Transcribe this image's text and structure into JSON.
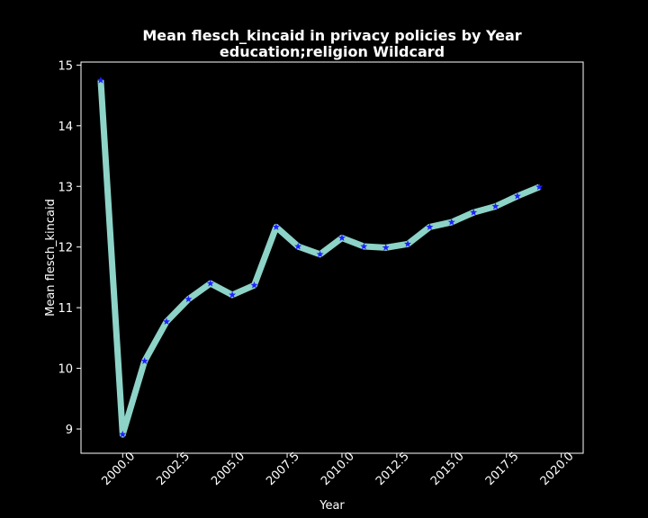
{
  "chart_data": {
    "type": "line",
    "title_line1": "Mean flesch_kincaid in privacy policies by Year",
    "title_line2": "education;religion Wildcard",
    "xlabel": "Year",
    "ylabel": "Mean flesch_kincaid",
    "xlim": [
      1998.1,
      2021.0
    ],
    "ylim": [
      8.6,
      15.05
    ],
    "x_ticks": [
      2000.0,
      2002.5,
      2005.0,
      2007.5,
      2010.0,
      2012.5,
      2015.0,
      2017.5,
      2020.0
    ],
    "x_tick_labels": [
      "2000.0",
      "2002.5",
      "2005.0",
      "2007.5",
      "2010.0",
      "2012.5",
      "2015.0",
      "2017.5",
      "2020.0"
    ],
    "y_ticks": [
      9,
      10,
      11,
      12,
      13,
      14,
      15
    ],
    "y_tick_labels": [
      "9",
      "10",
      "11",
      "12",
      "13",
      "14",
      "15"
    ],
    "grid": false,
    "colors": {
      "background": "#000000",
      "line": "#8dd3c7",
      "marker": "#1f1fff",
      "text": "#ffffff"
    },
    "series": [
      {
        "x": [
          1999,
          2000,
          2001,
          2002,
          2003,
          2004,
          2005,
          2006,
          2007,
          2008,
          2009,
          2010,
          2011,
          2012,
          2013,
          2014,
          2015,
          2016,
          2017,
          2018,
          2019
        ],
        "values": [
          14.75,
          8.91,
          10.12,
          10.77,
          11.14,
          11.4,
          11.21,
          11.37,
          12.33,
          12.01,
          11.88,
          12.15,
          12.01,
          11.99,
          12.05,
          12.33,
          12.41,
          12.57,
          12.67,
          12.84,
          12.99
        ]
      }
    ]
  }
}
